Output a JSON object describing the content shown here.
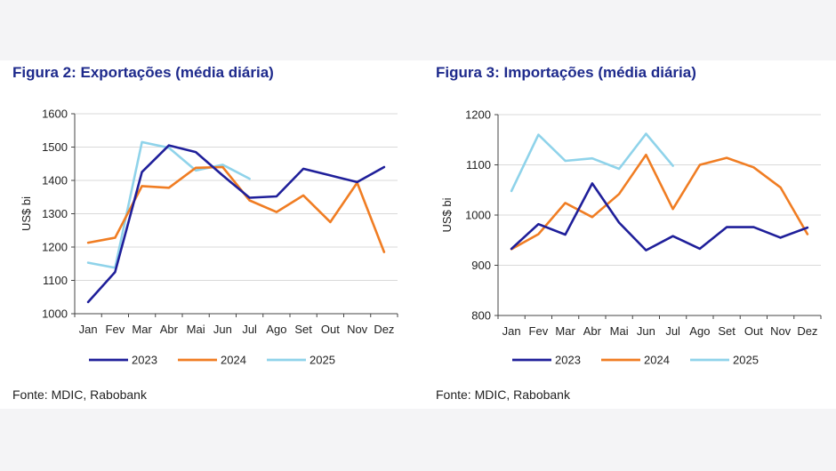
{
  "figures": [
    {
      "title": "Figura 2: Exportações (média diária)",
      "source": "Fonte: MDIC, Rabobank",
      "chart_data": {
        "type": "line",
        "ylabel": "US$ bi",
        "ylim": [
          1000,
          1600
        ],
        "yticks": [
          1000,
          1100,
          1200,
          1300,
          1400,
          1500,
          1600
        ],
        "categories": [
          "Jan",
          "Fev",
          "Mar",
          "Abr",
          "Mai",
          "Jun",
          "Jul",
          "Ago",
          "Set",
          "Out",
          "Nov",
          "Dez"
        ],
        "legend_position": "bottom",
        "grid": true,
        "series": [
          {
            "name": "2023",
            "color": "#1f1f9a",
            "values": [
              1035,
              1125,
              1425,
              1505,
              1485,
              1415,
              1348,
              1352,
              1435,
              1415,
              1395,
              1440
            ]
          },
          {
            "name": "2024",
            "color": "#f07d23",
            "values": [
              1213,
              1228,
              1383,
              1378,
              1438,
              1440,
              1340,
              1305,
              1355,
              1275,
              1393,
              1185
            ]
          },
          {
            "name": "2025",
            "color": "#8fd3ea",
            "values": [
              1153,
              1138,
              1515,
              1498,
              1430,
              1447,
              1405,
              null,
              null,
              null,
              null,
              null
            ]
          }
        ]
      }
    },
    {
      "title": "Figura 3: Importações (média diária)",
      "source": "Fonte: MDIC, Rabobank",
      "chart_data": {
        "type": "line",
        "ylabel": "US$ bi",
        "ylim": [
          800,
          1200
        ],
        "yticks": [
          800,
          900,
          1000,
          1100,
          1200
        ],
        "categories": [
          "Jan",
          "Fev",
          "Mar",
          "Abr",
          "Mai",
          "Jun",
          "Jul",
          "Ago",
          "Set",
          "Out",
          "Nov",
          "Dez"
        ],
        "legend_position": "bottom",
        "grid": true,
        "series": [
          {
            "name": "2023",
            "color": "#1f1f9a",
            "values": [
              933,
              982,
              961,
              1063,
              985,
              930,
              958,
              933,
              976,
              976,
              955,
              975
            ]
          },
          {
            "name": "2024",
            "color": "#f07d23",
            "values": [
              932,
              962,
              1024,
              996,
              1042,
              1120,
              1012,
              1100,
              1114,
              1095,
              1055,
              962
            ]
          },
          {
            "name": "2025",
            "color": "#8fd3ea",
            "values": [
              1048,
              1160,
              1108,
              1113,
              1092,
              1162,
              1098,
              null,
              null,
              null,
              null,
              null
            ]
          }
        ]
      }
    }
  ]
}
